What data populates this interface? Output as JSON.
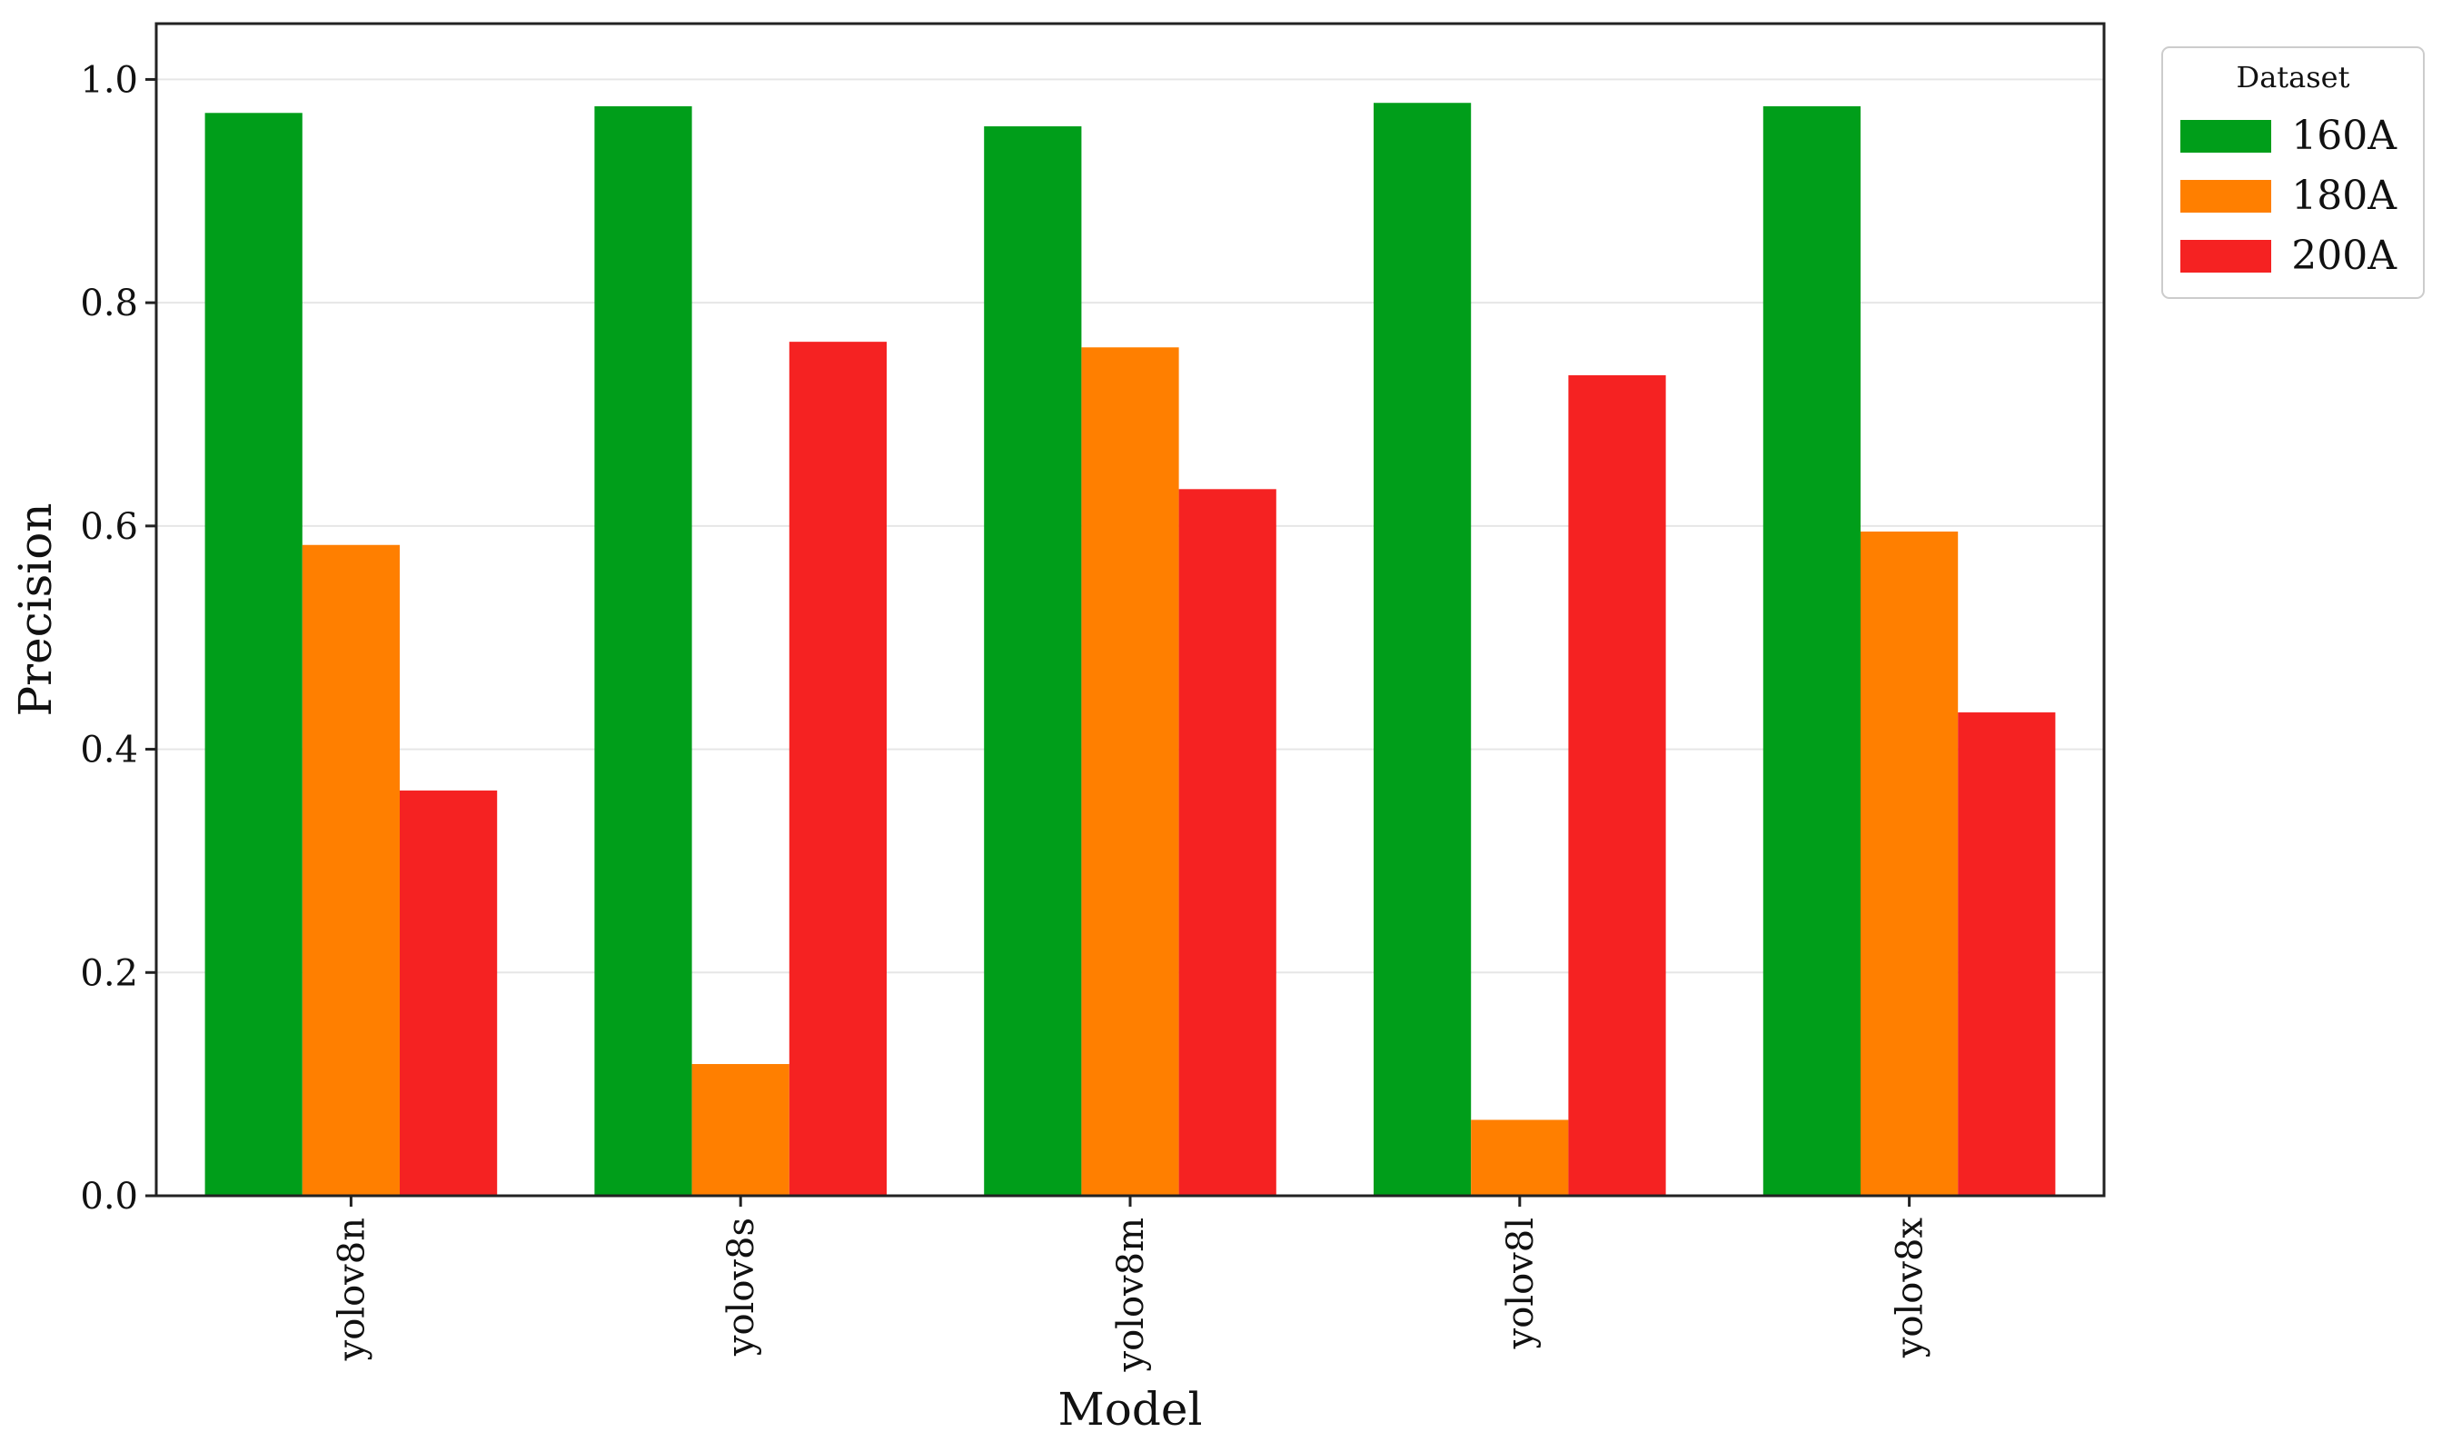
{
  "chart_data": {
    "type": "bar",
    "title": "",
    "xlabel": "Model",
    "ylabel": "Precision",
    "categories": [
      "yolov8n",
      "yolov8s",
      "yolov8m",
      "yolov8l",
      "yolov8x"
    ],
    "series": [
      {
        "name": "160A",
        "color": "#009e1a",
        "values": [
          0.97,
          0.976,
          0.958,
          0.979,
          0.976
        ]
      },
      {
        "name": "180A",
        "color": "#ff7f00",
        "values": [
          0.583,
          0.118,
          0.76,
          0.068,
          0.595
        ]
      },
      {
        "name": "200A",
        "color": "#f52222",
        "values": [
          0.363,
          0.765,
          0.633,
          0.735,
          0.433
        ]
      }
    ],
    "ylim": [
      0,
      1.05
    ],
    "yticks": [
      0.0,
      0.2,
      0.4,
      0.6,
      0.8,
      1.0
    ],
    "ytick_labels": [
      "0.0",
      "0.2",
      "0.4",
      "0.6",
      "0.8",
      "1.0"
    ],
    "grid": {
      "y": true,
      "x": false
    },
    "legend": {
      "title": "Dataset",
      "placement": "outside-top-right"
    },
    "xtick_rotation": "vertical"
  }
}
